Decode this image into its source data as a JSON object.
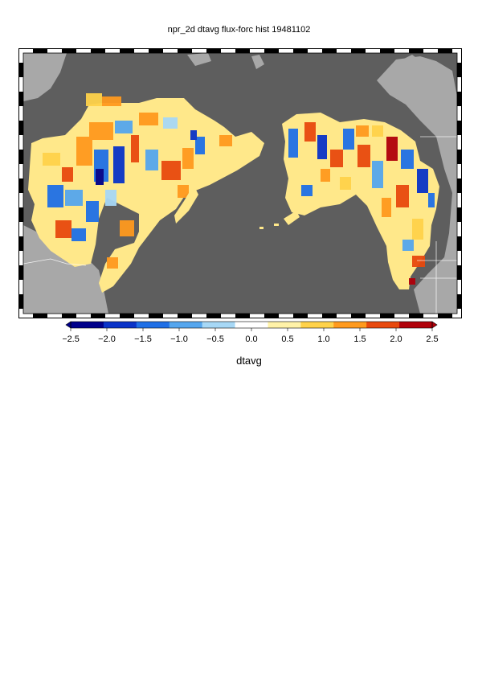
{
  "title": "npr_2d dtavg flux-forc hist 19481102",
  "colorbar": {
    "label": "dtavg",
    "ticks": [
      "-2.5",
      "-2.0",
      "-1.5",
      "-1.0",
      "-0.5",
      "0.0",
      "0.5",
      "1.0",
      "1.5",
      "2.0",
      "2.5"
    ],
    "range": [
      -2.5,
      2.5
    ],
    "colors": [
      "#00008b",
      "#0a33c8",
      "#1f6fe6",
      "#55a6ee",
      "#a7d8f6",
      "#ffffff",
      "#fff2a8",
      "#ffd24a",
      "#ff9a1e",
      "#e8490e",
      "#b0000a"
    ]
  },
  "colors": {
    "ocean": "#5e5e5e",
    "land_no_data": "#a8a8a8",
    "frame_light": "#ffffff",
    "frame_dark": "#000000"
  }
}
